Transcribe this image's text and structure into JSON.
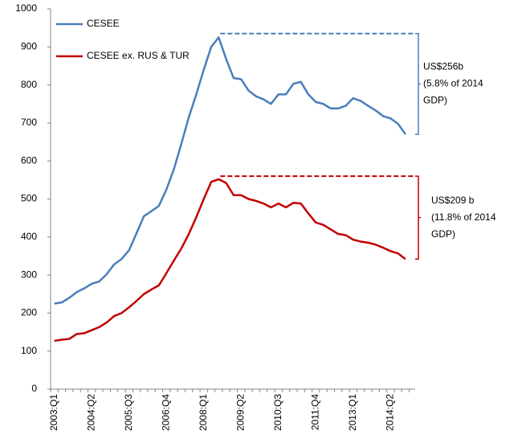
{
  "chart_data": {
    "type": "line",
    "categories": [
      "2003:Q1",
      null,
      null,
      null,
      null,
      "2004:Q2",
      null,
      null,
      null,
      null,
      "2005:Q3",
      null,
      null,
      null,
      null,
      "2006:Q4",
      null,
      null,
      null,
      null,
      "2008:Q1",
      null,
      null,
      null,
      null,
      "2009:Q2",
      null,
      null,
      null,
      null,
      "2010:Q3",
      null,
      null,
      null,
      null,
      "2011:Q4",
      null,
      null,
      null,
      null,
      "2013:Q1",
      null,
      null,
      null,
      null,
      "2014:Q2",
      null,
      null
    ],
    "series": [
      {
        "name": "CESEE",
        "color": "#4a7ebb",
        "values": [
          225,
          228,
          240,
          255,
          265,
          277,
          283,
          302,
          328,
          342,
          365,
          410,
          455,
          468,
          482,
          525,
          578,
          645,
          715,
          775,
          840,
          900,
          925,
          868,
          818,
          815,
          785,
          770,
          762,
          750,
          775,
          775,
          803,
          808,
          775,
          755,
          750,
          738,
          738,
          745,
          765,
          758,
          745,
          733,
          718,
          712,
          698,
          670
        ]
      },
      {
        "name": "CESEE ex. RUS & TUR",
        "color": "#c00000",
        "values": [
          127,
          130,
          132,
          145,
          147,
          155,
          163,
          175,
          192,
          200,
          215,
          232,
          250,
          262,
          273,
          305,
          338,
          370,
          408,
          452,
          500,
          545,
          552,
          542,
          510,
          510,
          500,
          495,
          488,
          478,
          488,
          478,
          490,
          488,
          462,
          438,
          432,
          420,
          408,
          405,
          393,
          388,
          385,
          380,
          372,
          363,
          357,
          342
        ]
      }
    ],
    "annotations": [
      {
        "level": 935,
        "color": "#4a7ebb",
        "text": [
          "US$256b",
          "(5.8% of 2014",
          "GDP)"
        ]
      },
      {
        "level": 560,
        "color": "#c00000",
        "text": [
          "US$209 b",
          "(11.8% of 2014",
          "GDP)"
        ]
      }
    ],
    "ylim": [
      0,
      1000
    ],
    "yticks": [
      0,
      100,
      200,
      300,
      400,
      500,
      600,
      700,
      800,
      900,
      1000
    ],
    "legend": "upper left"
  }
}
